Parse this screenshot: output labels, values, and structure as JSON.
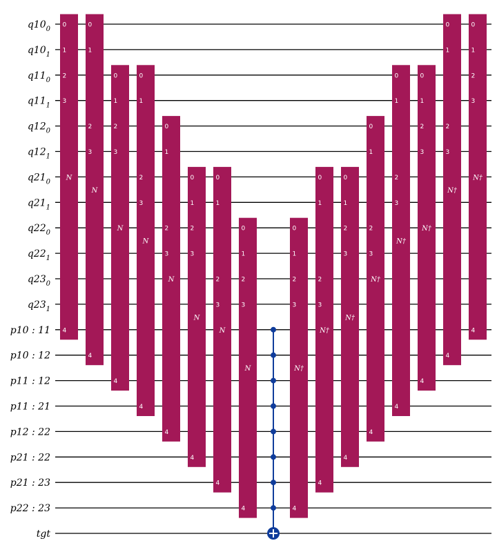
{
  "qubits": [
    {
      "base": "q10",
      "sub": "0"
    },
    {
      "base": "q10",
      "sub": "1"
    },
    {
      "base": "q11",
      "sub": "0"
    },
    {
      "base": "q11",
      "sub": "1"
    },
    {
      "base": "q12",
      "sub": "0"
    },
    {
      "base": "q12",
      "sub": "1"
    },
    {
      "base": "q21",
      "sub": "0"
    },
    {
      "base": "q21",
      "sub": "1"
    },
    {
      "base": "q22",
      "sub": "0"
    },
    {
      "base": "q22",
      "sub": "1"
    },
    {
      "base": "q23",
      "sub": "0"
    },
    {
      "base": "q23",
      "sub": "1"
    },
    {
      "base": "p10 : 11",
      "sub": ""
    },
    {
      "base": "p10 : 12",
      "sub": ""
    },
    {
      "base": "p11 : 12",
      "sub": ""
    },
    {
      "base": "p11 : 21",
      "sub": ""
    },
    {
      "base": "p12 : 22",
      "sub": ""
    },
    {
      "base": "p21 : 22",
      "sub": ""
    },
    {
      "base": "p21 : 23",
      "sub": ""
    },
    {
      "base": "p22 : 23",
      "sub": ""
    },
    {
      "base": "tgt",
      "sub": ""
    }
  ],
  "colors": {
    "gate": "#a31857",
    "control": "#0f3c9b",
    "wire": "#000000"
  },
  "gates": [
    {
      "label": "N",
      "top": 0,
      "bottom": 12,
      "pins": {
        "0": "0",
        "1": "1",
        "2": "2",
        "3": "3",
        "12": "4"
      },
      "label_row": 6
    },
    {
      "label": "N",
      "top": 0,
      "bottom": 13,
      "pins": {
        "0": "0",
        "1": "1",
        "4": "2",
        "5": "3",
        "13": "4"
      },
      "label_row": 6.5
    },
    {
      "label": "N",
      "top": 2,
      "bottom": 14,
      "pins": {
        "2": "0",
        "3": "1",
        "4": "2",
        "5": "3",
        "14": "4"
      },
      "label_row": 8
    },
    {
      "label": "N",
      "top": 2,
      "bottom": 15,
      "pins": {
        "2": "0",
        "3": "1",
        "6": "2",
        "7": "3",
        "15": "4"
      },
      "label_row": 8.5
    },
    {
      "label": "N",
      "top": 4,
      "bottom": 16,
      "pins": {
        "4": "0",
        "5": "1",
        "8": "2",
        "9": "3",
        "16": "4"
      },
      "label_row": 10
    },
    {
      "label": "N",
      "top": 6,
      "bottom": 17,
      "pins": {
        "6": "0",
        "7": "1",
        "8": "2",
        "9": "3",
        "17": "4"
      },
      "label_row": 11.5
    },
    {
      "label": "N",
      "top": 6,
      "bottom": 18,
      "pins": {
        "6": "0",
        "7": "1",
        "10": "2",
        "11": "3",
        "18": "4"
      },
      "label_row": 12
    },
    {
      "label": "N",
      "top": 8,
      "bottom": 19,
      "pins": {
        "8": "0",
        "9": "1",
        "10": "2",
        "11": "3",
        "19": "4"
      },
      "label_row": 13.5
    },
    {
      "type": "mcx",
      "controls": [
        12,
        13,
        14,
        15,
        16,
        17,
        18,
        19
      ],
      "target": 20
    },
    {
      "label": "N†",
      "top": 8,
      "bottom": 19,
      "pins": {
        "8": "0",
        "9": "1",
        "10": "2",
        "11": "3",
        "19": "4"
      },
      "label_row": 13.5
    },
    {
      "label": "N†",
      "top": 6,
      "bottom": 18,
      "pins": {
        "6": "0",
        "7": "1",
        "10": "2",
        "11": "3",
        "18": "4"
      },
      "label_row": 12
    },
    {
      "label": "N†",
      "top": 6,
      "bottom": 17,
      "pins": {
        "6": "0",
        "7": "1",
        "8": "2",
        "9": "3",
        "17": "4"
      },
      "label_row": 11.5
    },
    {
      "label": "N†",
      "top": 4,
      "bottom": 16,
      "pins": {
        "4": "0",
        "5": "1",
        "8": "2",
        "9": "3",
        "16": "4"
      },
      "label_row": 10
    },
    {
      "label": "N†",
      "top": 2,
      "bottom": 15,
      "pins": {
        "2": "0",
        "3": "1",
        "6": "2",
        "7": "3",
        "15": "4"
      },
      "label_row": 8.5
    },
    {
      "label": "N†",
      "top": 2,
      "bottom": 14,
      "pins": {
        "2": "0",
        "3": "1",
        "4": "2",
        "5": "3",
        "14": "4"
      },
      "label_row": 8
    },
    {
      "label": "N†",
      "top": 0,
      "bottom": 13,
      "pins": {
        "0": "0",
        "1": "1",
        "4": "2",
        "5": "3",
        "13": "4"
      },
      "label_row": 6.5
    },
    {
      "label": "N†",
      "top": 0,
      "bottom": 12,
      "pins": {
        "0": "0",
        "1": "1",
        "2": "2",
        "3": "3",
        "12": "4"
      },
      "label_row": 6
    }
  ]
}
